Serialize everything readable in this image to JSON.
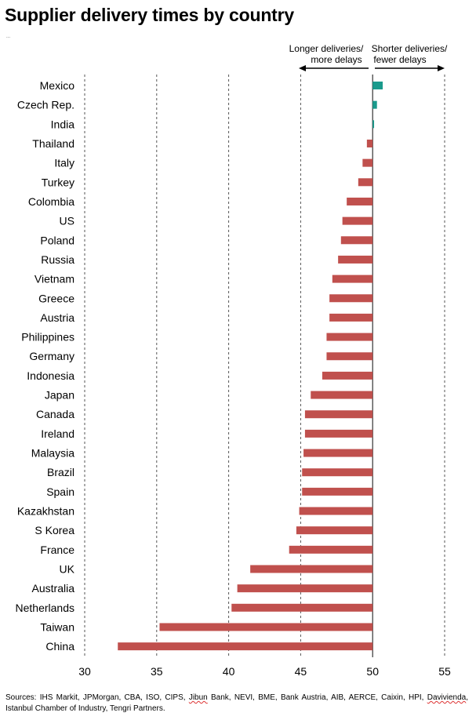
{
  "title": "Supplier delivery times by country",
  "tiny_mark": "...",
  "annotations": {
    "left": [
      "Longer deliveries/",
      "more delays"
    ],
    "right": [
      "Shorter deliveries/",
      "fewer delays"
    ]
  },
  "colors": {
    "negative": "#c0504d",
    "positive": "#1a9a8c",
    "gridline": "#555555"
  },
  "source_parts": [
    {
      "text": "Sources: IHS Markit, JPMorgan, CBA, ISO, CIPS, ",
      "squiggle": false
    },
    {
      "text": "Jibun",
      "squiggle": true
    },
    {
      "text": " Bank, NEVI, BME, Bank Austria, AIB, AERCE, Caixin, HPI, ",
      "squiggle": false
    },
    {
      "text": "Davivienda",
      "squiggle": true
    },
    {
      "text": ", Istanbul Chamber of Industry, Tengri Partners.",
      "squiggle": false
    }
  ],
  "chart_data": {
    "type": "bar",
    "orientation": "horizontal",
    "baseline": 50,
    "xlim": [
      30,
      55
    ],
    "xticks": [
      30,
      35,
      40,
      45,
      50,
      55
    ],
    "grid": true,
    "categories": [
      "Mexico",
      "Czech Rep.",
      "India",
      "Thailand",
      "Italy",
      "Turkey",
      "Colombia",
      "US",
      "Poland",
      "Russia",
      "Vietnam",
      "Greece",
      "Austria",
      "Philippines",
      "Germany",
      "Indonesia",
      "Japan",
      "Canada",
      "Ireland",
      "Malaysia",
      "Brazil",
      "Spain",
      "Kazakhstan",
      "S Korea",
      "France",
      "UK",
      "Australia",
      "Netherlands",
      "Taiwan",
      "China"
    ],
    "values": [
      50.7,
      50.3,
      50.1,
      49.6,
      49.3,
      49.0,
      48.2,
      47.9,
      47.8,
      47.6,
      47.2,
      47.0,
      47.0,
      46.8,
      46.8,
      46.5,
      45.7,
      45.3,
      45.3,
      45.2,
      45.1,
      45.1,
      44.9,
      44.7,
      44.2,
      41.5,
      40.6,
      40.2,
      35.2,
      32.3
    ]
  }
}
